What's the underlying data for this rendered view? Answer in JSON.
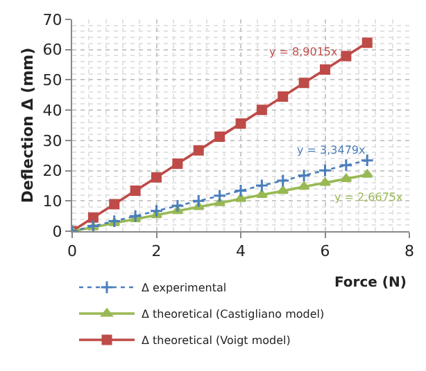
{
  "chart_data": {
    "type": "line",
    "xlabel": "Force (N)",
    "ylabel": "Deflection Δ (mm)",
    "x": [
      0,
      0.5,
      1,
      1.5,
      2,
      2.5,
      3,
      3.5,
      4,
      4.5,
      5,
      5.5,
      6,
      6.5,
      7
    ],
    "series": [
      {
        "name": "Δ experimental",
        "color": "#4a7ebb",
        "marker": "cross",
        "line_style": "dotted",
        "values": [
          0,
          1.7,
          3.3,
          5.0,
          6.7,
          8.4,
          10.0,
          11.7,
          13.4,
          15.1,
          16.7,
          18.4,
          20.1,
          21.8,
          23.4
        ]
      },
      {
        "name": "Δ theoretical (Castigliano model)",
        "color": "#98b954",
        "marker": "triangle",
        "line_style": "solid",
        "values": [
          0,
          1.3,
          2.7,
          4.0,
          5.3,
          6.7,
          8.0,
          9.3,
          10.7,
          12.0,
          13.3,
          14.7,
          16.0,
          17.3,
          18.7
        ]
      },
      {
        "name": "Δ theoretical (Voigt model)",
        "color": "#be4b48",
        "marker": "square",
        "line_style": "solid",
        "values": [
          0,
          4.5,
          8.9,
          13.4,
          17.8,
          22.3,
          26.7,
          31.2,
          35.6,
          40.1,
          44.5,
          49.0,
          53.4,
          57.9,
          62.3
        ]
      }
    ],
    "xlim": [
      0,
      8
    ],
    "xticks": [
      0,
      2,
      4,
      6,
      8
    ],
    "ylim": [
      0,
      70
    ],
    "yticks": [
      0,
      10,
      20,
      30,
      40,
      50,
      60,
      70
    ],
    "grid": true,
    "legend": "bottom left",
    "annotations": [
      "y = 3,3479x",
      "y = 2,6675x",
      "y = 8,9015x"
    ]
  }
}
